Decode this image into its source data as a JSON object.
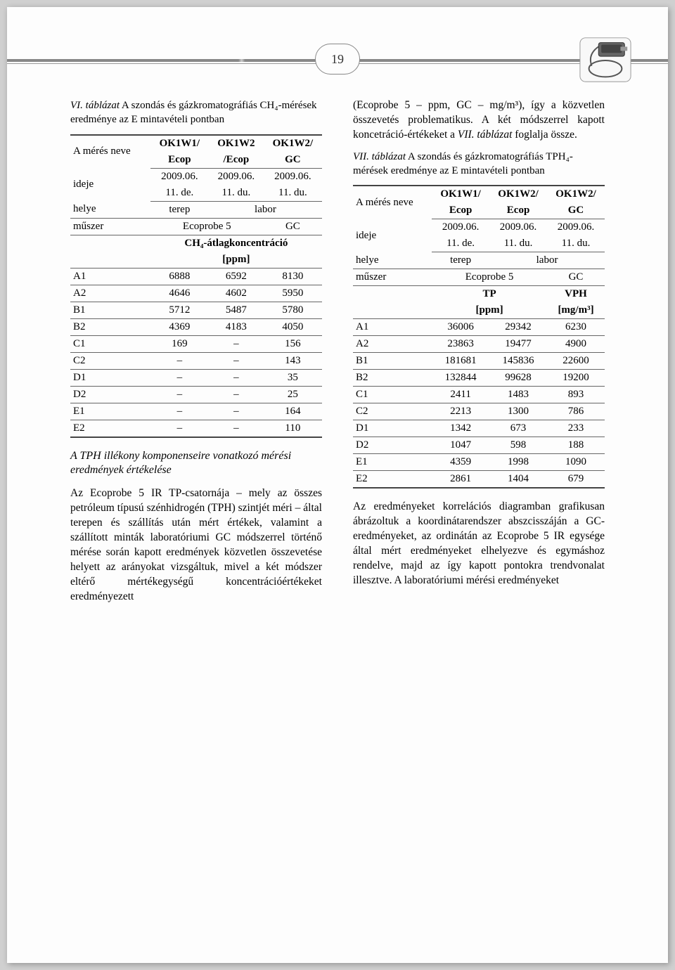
{
  "page_number": "19",
  "left": {
    "caption": {
      "lead": "VI. táblázat",
      "rest": " A szondás és gázkromatográfiás CH₄-mérések eredménye az E mintavételi pontban"
    },
    "table6": {
      "head": {
        "c0": "A mérés neve",
        "c1a": "OK1W1/",
        "c1b": "Ecop",
        "c2a": "OK1W2",
        "c2b": "/Ecop",
        "c3a": "OK1W2/",
        "c3b": "GC"
      },
      "ideje": {
        "lbl": "ideje",
        "c1a": "2009.06.",
        "c1b": "11. de.",
        "c2a": "2009.06.",
        "c2b": "11. du.",
        "c3a": "2009.06.",
        "c3b": "11. du."
      },
      "helye": {
        "lbl": "helye",
        "c1": "terep",
        "c23": "labor"
      },
      "muszer": {
        "lbl": "műszer",
        "c12": "Ecoprobe 5",
        "c3": "GC"
      },
      "unit_line1": "CH₄-átlagkoncentráció",
      "unit_line2": "[ppm]",
      "rows": [
        {
          "lbl": "A1",
          "v1": "6888",
          "v2": "6592",
          "v3": "8130"
        },
        {
          "lbl": "A2",
          "v1": "4646",
          "v2": "4602",
          "v3": "5950"
        },
        {
          "lbl": "B1",
          "v1": "5712",
          "v2": "5487",
          "v3": "5780"
        },
        {
          "lbl": "B2",
          "v1": "4369",
          "v2": "4183",
          "v3": "4050"
        },
        {
          "lbl": "C1",
          "v1": "169",
          "v2": "–",
          "v3": "156"
        },
        {
          "lbl": "C2",
          "v1": "–",
          "v2": "–",
          "v3": "143"
        },
        {
          "lbl": "D1",
          "v1": "–",
          "v2": "–",
          "v3": "35"
        },
        {
          "lbl": "D2",
          "v1": "–",
          "v2": "–",
          "v3": "25"
        },
        {
          "lbl": "E1",
          "v1": "–",
          "v2": "–",
          "v3": "164"
        },
        {
          "lbl": "E2",
          "v1": "–",
          "v2": "–",
          "v3": "110"
        }
      ]
    },
    "section_heading": "A TPH illékony komponenseire vonatkozó mérési eredmények értékelése",
    "para1": "Az Ecoprobe 5 IR TP-csatornája – mely az összes petróleum típusú szénhidrogén (TPH) szintjét méri – által terepen és szállítás után mért értékek, valamint a szállított minták laboratóriumi GC módszerrel történő mérése során kapott eredmények közvetlen összevetése helyett az arányokat vizsgáltuk, mivel a két módszer eltérő mértékegységű koncentrációértékeket eredményezett"
  },
  "right": {
    "para_top": "(Ecoprobe 5 – ppm, GC – mg/m³), így a közvetlen összevetés problematikus. A két módszerrel kapott koncetráció-értékeket a <i>VII. táblázat</i> foglalja össze.",
    "caption": {
      "lead": "VII. táblázat",
      "rest": " A szondás és gázkromatográfiás TPH₄-mérések eredménye az E mintavételi pontban"
    },
    "table7": {
      "head": {
        "c0": "A mérés neve",
        "c1a": "OK1W1/",
        "c1b": "Ecop",
        "c2a": "OK1W2/",
        "c2b": "Ecop",
        "c3a": "OK1W2/",
        "c3b": "GC"
      },
      "ideje": {
        "lbl": "ideje",
        "c1a": "2009.06.",
        "c1b": "11. de.",
        "c2a": "2009.06.",
        "c2b": "11. du.",
        "c3a": "2009.06.",
        "c3b": "11. du."
      },
      "helye": {
        "lbl": "helye",
        "c1": "terep",
        "c23": "labor"
      },
      "muszer": {
        "lbl": "műszer",
        "c12": "Ecoprobe 5",
        "c3": "GC"
      },
      "unit_col12_a": "TP",
      "unit_col12_b": "[ppm]",
      "unit_col3_a": "VPH",
      "unit_col3_b": "[mg/m³]",
      "rows": [
        {
          "lbl": "A1",
          "v1": "36006",
          "v2": "29342",
          "v3": "6230"
        },
        {
          "lbl": "A2",
          "v1": "23863",
          "v2": "19477",
          "v3": "4900"
        },
        {
          "lbl": "B1",
          "v1": "181681",
          "v2": "145836",
          "v3": "22600"
        },
        {
          "lbl": "B2",
          "v1": "132844",
          "v2": "99628",
          "v3": "19200"
        },
        {
          "lbl": "C1",
          "v1": "2411",
          "v2": "1483",
          "v3": "893"
        },
        {
          "lbl": "C2",
          "v1": "2213",
          "v2": "1300",
          "v3": "786"
        },
        {
          "lbl": "D1",
          "v1": "1342",
          "v2": "673",
          "v3": "233"
        },
        {
          "lbl": "D2",
          "v1": "1047",
          "v2": "598",
          "v3": "188"
        },
        {
          "lbl": "E1",
          "v1": "4359",
          "v2": "1998",
          "v3": "1090"
        },
        {
          "lbl": "E2",
          "v1": "2861",
          "v2": "1404",
          "v3": "679"
        }
      ]
    },
    "para_bottom": "Az eredményeket korrelációs diagramban grafikusan ábrázoltuk a koordinátarendszer abszcisszáján a GC-eredményeket, az ordinátán az Ecoprobe 5 IR egysége által mért eredményeket elhelyezve és egymáshoz rendelve, majd az így kapott pontokra trendvonalat illesztve. A laboratóriumi mérési eredményeket"
  },
  "colors": {
    "text": "#222222",
    "rule": "#555555",
    "page_bg": "#fdfdfd"
  }
}
